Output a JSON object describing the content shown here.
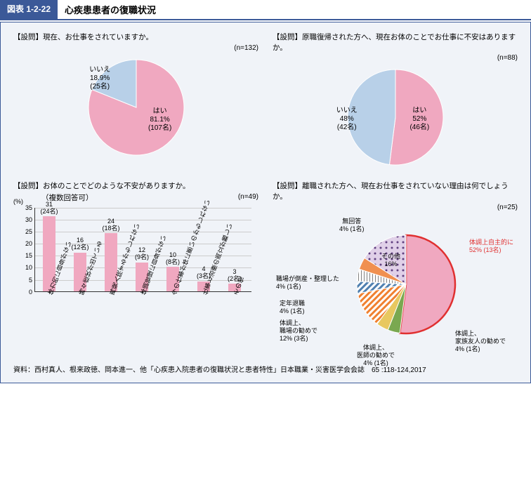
{
  "header": {
    "tag": "図表 1-2-22",
    "title": "心疾患患者の復職状況"
  },
  "colors": {
    "pink": "#f0a8c0",
    "lightblue": "#b8d0e8",
    "navy": "#3b5998",
    "bg": "#f0f3f8",
    "grid": "#cccccc",
    "axis": "#333333",
    "red_stroke": "#e03030",
    "red_text": "#e03030",
    "orange_hatch": "#f08030",
    "green": "#7aa850",
    "blue_hatch": "#5080b0",
    "yellow": "#e8c860",
    "purple_dot": "#a080c0",
    "orange_solid": "#f09050"
  },
  "pie1": {
    "question": "【設問】現在、お仕事をされていますか。",
    "n": "(n=132)",
    "slices": [
      {
        "label": "はい",
        "pct": "81.1%",
        "count": "(107名)",
        "value": 81.1,
        "color": "#f0a8c0"
      },
      {
        "label": "いいえ",
        "pct": "18.9%",
        "count": "(25名)",
        "value": 18.9,
        "color": "#b8d0e8"
      }
    ]
  },
  "pie2": {
    "question": "【設問】原職復帰された方へ、現在お体のことでお仕事に不安はありますか。",
    "n": "(n=88)",
    "slices": [
      {
        "label": "はい",
        "pct": "52%",
        "count": "(46名)",
        "value": 52,
        "color": "#f0a8c0"
      },
      {
        "label": "いいえ",
        "pct": "48%",
        "count": "(42名)",
        "value": 48,
        "color": "#b8d0e8"
      }
    ]
  },
  "bars": {
    "question": "【設問】お体のことでどのような不安がありますか。",
    "sub": "（複数回答可）",
    "n": "(n=49)",
    "y_unit": "(%)",
    "y_max": 35,
    "y_step": 5,
    "items": [
      {
        "cat": "体力的に自身がない",
        "val": 31,
        "count": "(24名)"
      },
      {
        "cat": "時々症状が出ている",
        "val": 16,
        "count": "(12名)"
      },
      {
        "cat": "再発入院するかもしれない",
        "val": 24,
        "count": "(18名)"
      },
      {
        "cat": "体調管理に自身がない",
        "val": 12,
        "count": "(9名)"
      },
      {
        "cat": "今の仕事が体に悪いのかもしれない",
        "val": 10,
        "count": "(8名)"
      },
      {
        "cat": "仕事と治療の両立が難しい",
        "val": 4,
        "count": "(3名)"
      },
      {
        "cat": "その他",
        "val": 3,
        "count": "(2名)"
      }
    ]
  },
  "pie3": {
    "question": "【設問】離職された方へ、現在お仕事をされていない理由は何でしょうか。",
    "n": "(n=25)",
    "slices": [
      {
        "label": "体調上自主的に",
        "pct": "52%",
        "count": "(13名)",
        "value": 52,
        "color": "#f0a8c0",
        "highlight": true
      },
      {
        "label": "体調上、家族友人の勧めで",
        "pct": "4%",
        "count": "(1名)",
        "value": 4,
        "color": "#7aa850"
      },
      {
        "label": "体調上、医師の勧めで",
        "pct": "4%",
        "count": "(1名)",
        "value": 4,
        "color": "#e8c860"
      },
      {
        "label": "体調上、職場の勧めで",
        "pct": "12%",
        "count": "(3名)",
        "value": 12,
        "color": "#f08030",
        "pattern": "hatch"
      },
      {
        "label": "定年退職",
        "pct": "4%",
        "count": "(1名)",
        "value": 4,
        "color": "#5080b0",
        "pattern": "hatch"
      },
      {
        "label": "職場が倒産・整理した",
        "pct": "4%",
        "count": "(1名)",
        "value": 4,
        "color": "#808080",
        "pattern": "vline"
      },
      {
        "label": "無回答",
        "pct": "4%",
        "count": "(1名)",
        "value": 4,
        "color": "#f09050"
      },
      {
        "label": "その他",
        "pct": "16%",
        "count": "",
        "value": 16,
        "color": "#a080c0",
        "pattern": "dot"
      }
    ]
  },
  "source": "資料：西村真人、根来政徳、岡本進一、他「心疾患入院患者の復職状況と患者特性」日本職業・災害医学会会誌　65 :118-124,2017"
}
